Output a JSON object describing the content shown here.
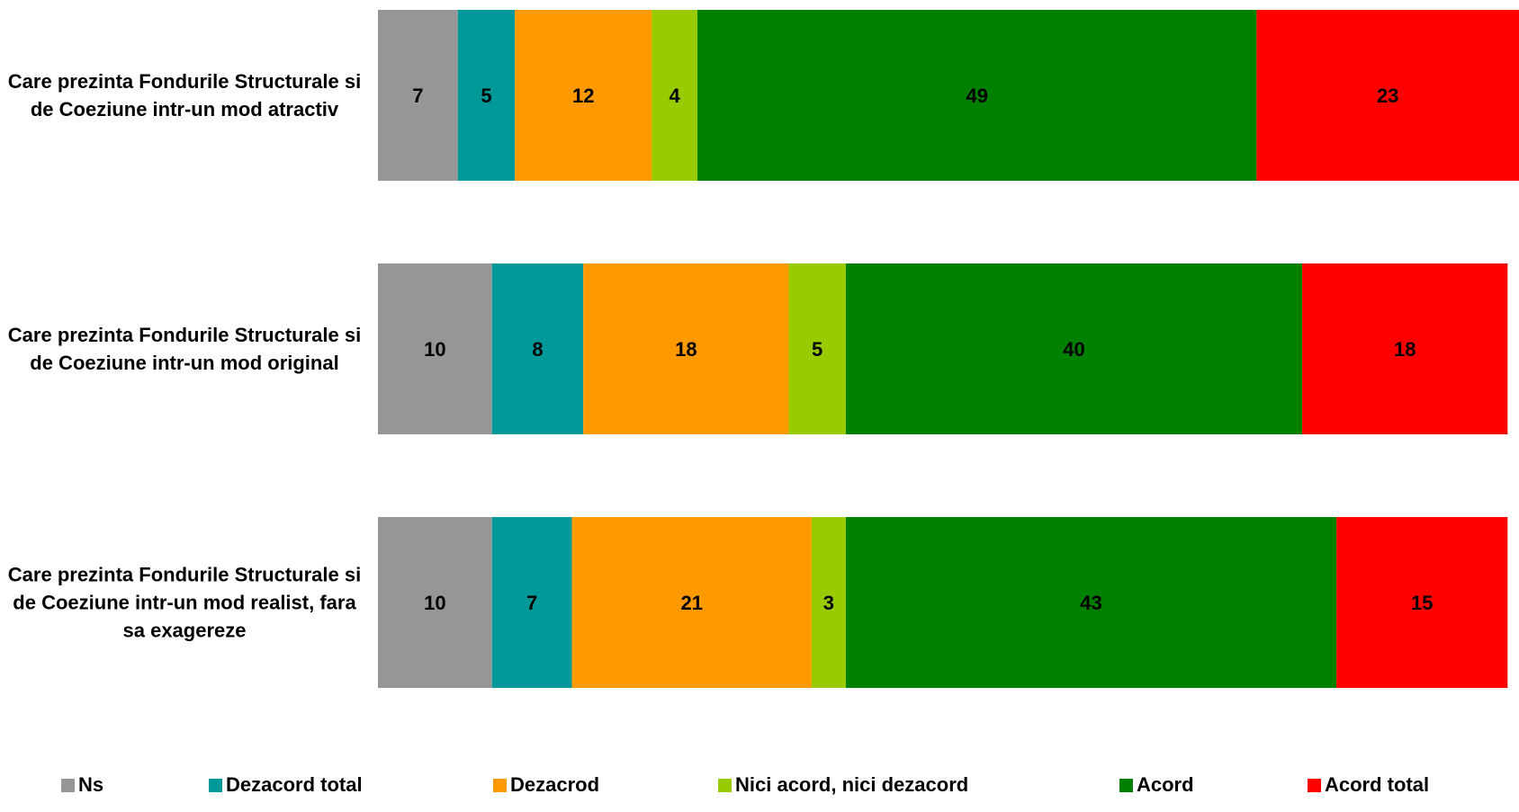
{
  "chart_data": {
    "type": "bar",
    "orientation": "horizontal",
    "stacked": true,
    "categories": [
      "Care prezinta Fondurile Structurale si de Coeziune intr-un mod atractiv",
      "Care prezinta Fondurile Structurale si de Coeziune intr-un mod original",
      "Care prezinta Fondurile Structurale si de Coeziune intr-un mod realist, fara sa exagereze"
    ],
    "series": [
      {
        "name": "Ns",
        "color": "#969696",
        "values": [
          7,
          10,
          10
        ]
      },
      {
        "name": "Dezacord total",
        "color": "#009999",
        "values": [
          5,
          8,
          7
        ]
      },
      {
        "name": "Dezacrod",
        "color": "#FF9900",
        "values": [
          12,
          18,
          21
        ]
      },
      {
        "name": "Nici acord, nici dezacord",
        "color": "#99CC00",
        "values": [
          4,
          5,
          3
        ]
      },
      {
        "name": "Acord",
        "color": "#008000",
        "values": [
          49,
          40,
          43
        ]
      },
      {
        "name": "Acord total",
        "color": "#FF0000",
        "values": [
          23,
          18,
          15
        ]
      }
    ],
    "xlim": [
      0,
      100
    ],
    "grid": false,
    "legend_position": "bottom",
    "data_labels": true
  }
}
